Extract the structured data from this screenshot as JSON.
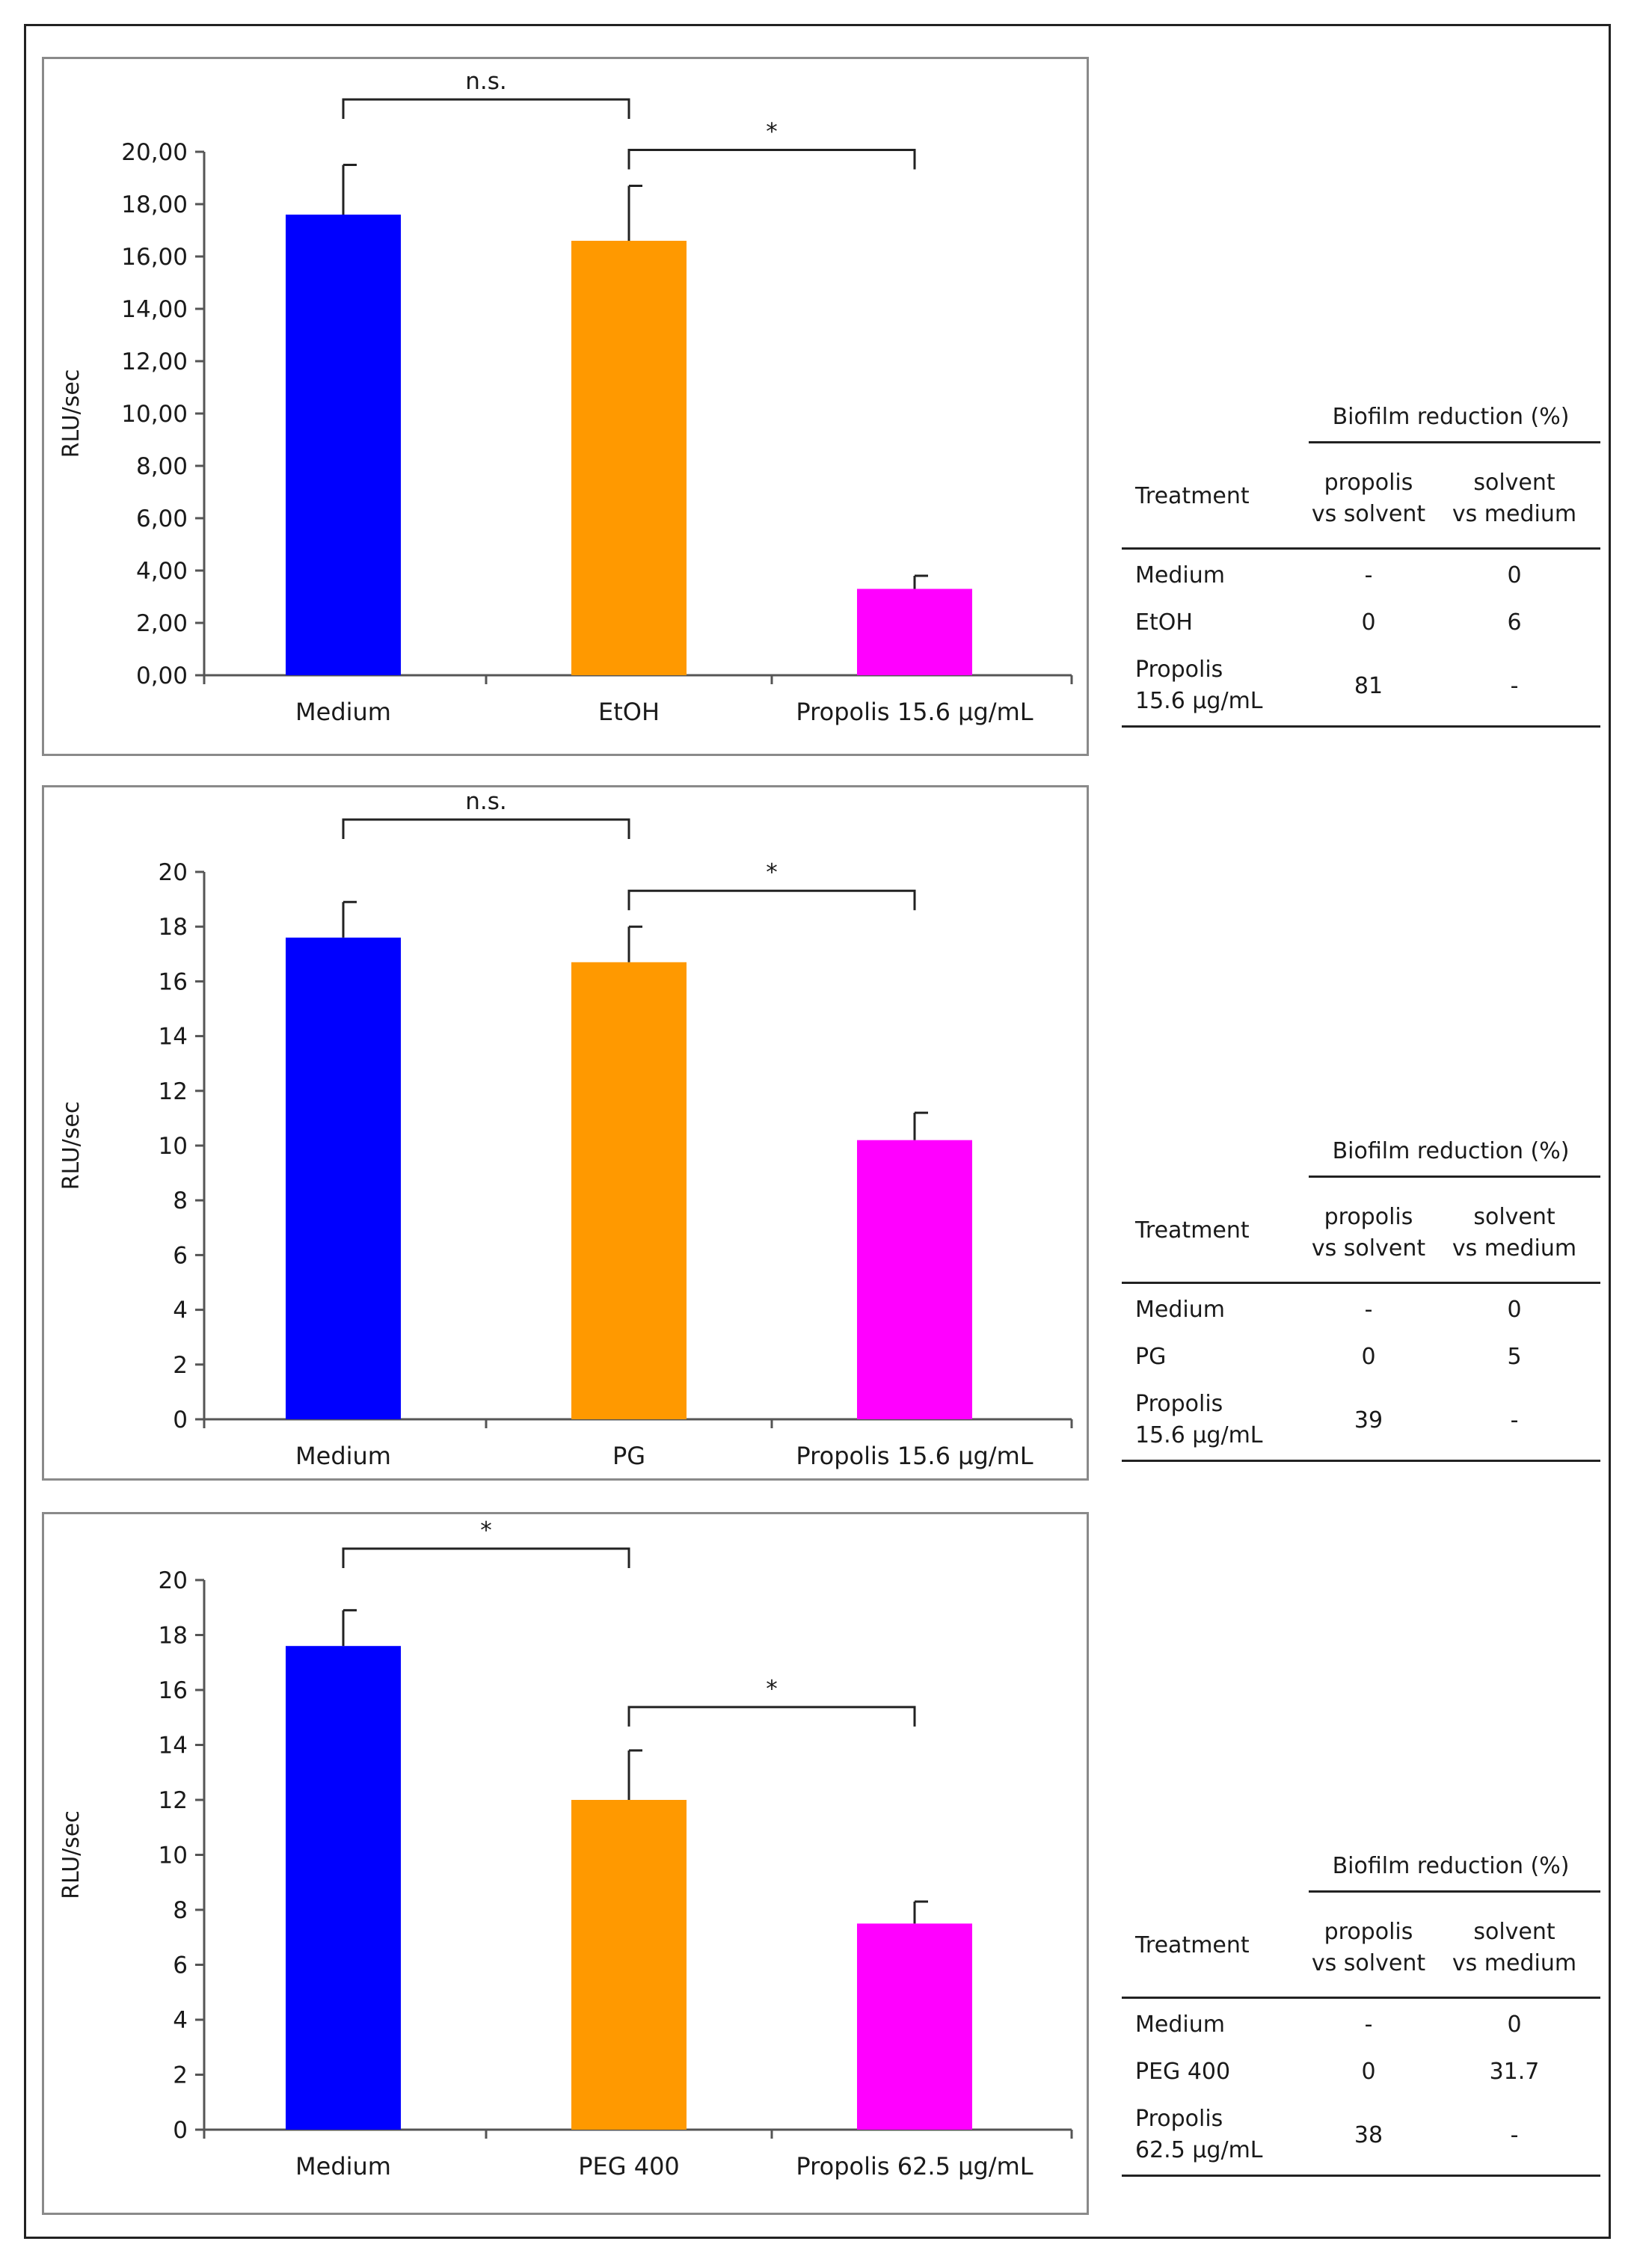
{
  "panels": [
    {
      "chart_data": {
        "type": "bar",
        "ylabel": "RLU/sec",
        "ylim": [
          0,
          20
        ],
        "ytick_step": 2,
        "ytick_labels": [
          "0,00",
          "2,00",
          "4,00",
          "6,00",
          "8,00",
          "10,00",
          "12,00",
          "14,00",
          "16,00",
          "18,00",
          "20,00"
        ],
        "categories": [
          "Medium",
          "EtOH",
          "Propolis 15.6 µg/mL"
        ],
        "values": [
          17.6,
          16.6,
          3.3
        ],
        "errors": [
          1.9,
          2.1,
          0.5
        ],
        "colors": [
          "#0000ff",
          "#ff9900",
          "#ff00ff"
        ],
        "significance": [
          {
            "from": 0,
            "to": 1,
            "label": "n.s."
          },
          {
            "from": 1,
            "to": 2,
            "label": "*"
          }
        ]
      },
      "table": {
        "header_group": "Biofilm reduction (%)",
        "col_treatment": "Treatment",
        "col1": [
          "propolis",
          "vs solvent"
        ],
        "col2": [
          "solvent",
          "vs medium"
        ],
        "rows": [
          {
            "name": [
              "Medium"
            ],
            "c1": "-",
            "c2": "0"
          },
          {
            "name": [
              "EtOH"
            ],
            "c1": "0",
            "c2": "6"
          },
          {
            "name": [
              "Propolis",
              "15.6 µg/mL"
            ],
            "c1": "81",
            "c2": "-"
          }
        ]
      }
    },
    {
      "chart_data": {
        "type": "bar",
        "ylabel": "RLU/sec",
        "ylim": [
          0,
          20
        ],
        "ytick_step": 2,
        "ytick_labels": [
          "0",
          "2",
          "4",
          "6",
          "8",
          "10",
          "12",
          "14",
          "16",
          "18",
          "20"
        ],
        "categories": [
          "Medium",
          "PG",
          "Propolis 15.6 µg/mL"
        ],
        "values": [
          17.6,
          16.7,
          10.2
        ],
        "errors": [
          1.3,
          1.3,
          1.0
        ],
        "colors": [
          "#0000ff",
          "#ff9900",
          "#ff00ff"
        ],
        "significance": [
          {
            "from": 0,
            "to": 1,
            "label": "n.s."
          },
          {
            "from": 1,
            "to": 2,
            "label": "*"
          }
        ]
      },
      "table": {
        "header_group": "Biofilm reduction (%)",
        "col_treatment": "Treatment",
        "col1": [
          "propolis",
          "vs solvent"
        ],
        "col2": [
          "solvent",
          "vs medium"
        ],
        "rows": [
          {
            "name": [
              "Medium"
            ],
            "c1": "-",
            "c2": "0"
          },
          {
            "name": [
              "PG"
            ],
            "c1": "0",
            "c2": "5"
          },
          {
            "name": [
              "Propolis",
              "15.6 µg/mL"
            ],
            "c1": "39",
            "c2": "-"
          }
        ]
      }
    },
    {
      "chart_data": {
        "type": "bar",
        "ylabel": "RLU/sec",
        "ylim": [
          0,
          20
        ],
        "ytick_step": 2,
        "ytick_labels": [
          "0",
          "2",
          "4",
          "6",
          "8",
          "10",
          "12",
          "14",
          "16",
          "18",
          "20"
        ],
        "categories": [
          "Medium",
          "PEG 400",
          "Propolis 62.5 µg/mL"
        ],
        "values": [
          17.6,
          12.0,
          7.5
        ],
        "errors": [
          1.3,
          1.8,
          0.8
        ],
        "colors": [
          "#0000ff",
          "#ff9900",
          "#ff00ff"
        ],
        "significance": [
          {
            "from": 0,
            "to": 1,
            "label": "*"
          },
          {
            "from": 1,
            "to": 2,
            "label": "*"
          }
        ]
      },
      "table": {
        "header_group": "Biofilm reduction (%)",
        "col_treatment": "Treatment",
        "col1": [
          "propolis",
          "vs solvent"
        ],
        "col2": [
          "solvent",
          "vs medium"
        ],
        "rows": [
          {
            "name": [
              "Medium"
            ],
            "c1": "-",
            "c2": "0"
          },
          {
            "name": [
              "PEG 400"
            ],
            "c1": "0",
            "c2": "31.7"
          },
          {
            "name": [
              "Propolis",
              "62.5 µg/mL"
            ],
            "c1": "38",
            "c2": "-"
          }
        ]
      }
    }
  ]
}
